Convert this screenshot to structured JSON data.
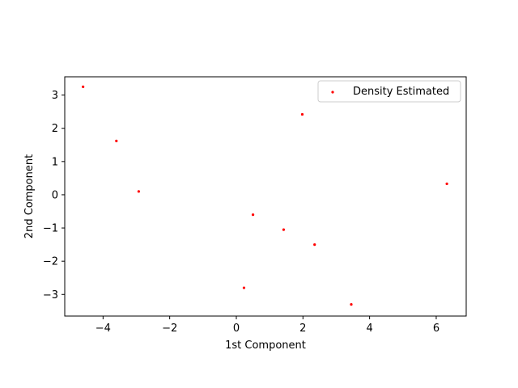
{
  "chart_data": {
    "type": "scatter",
    "title": "",
    "xlabel": "1st Component",
    "ylabel": "2nd Component",
    "xlim": [
      -5.15,
      6.9
    ],
    "ylim": [
      -3.65,
      3.55
    ],
    "xticks": [
      -4,
      -2,
      0,
      2,
      4,
      6
    ],
    "yticks": [
      -3,
      -2,
      -1,
      0,
      1,
      2,
      3
    ],
    "xtick_labels": [
      "−4",
      "−2",
      "0",
      "2",
      "4",
      "6"
    ],
    "ytick_labels": [
      "−3",
      "−2",
      "−1",
      "0",
      "1",
      "2",
      "3"
    ],
    "grid": false,
    "legend_position": "top-right",
    "series": [
      {
        "name": "Density Estimated",
        "color": "#ff0000",
        "points": [
          {
            "x": -4.6,
            "y": 3.25
          },
          {
            "x": -3.6,
            "y": 1.62
          },
          {
            "x": -2.93,
            "y": 0.1
          },
          {
            "x": 1.98,
            "y": 2.42
          },
          {
            "x": 0.5,
            "y": -0.6
          },
          {
            "x": 1.42,
            "y": -1.05
          },
          {
            "x": 2.35,
            "y": -1.5
          },
          {
            "x": 0.23,
            "y": -2.8
          },
          {
            "x": 3.45,
            "y": -3.3
          },
          {
            "x": 6.32,
            "y": 0.33
          }
        ]
      }
    ]
  }
}
